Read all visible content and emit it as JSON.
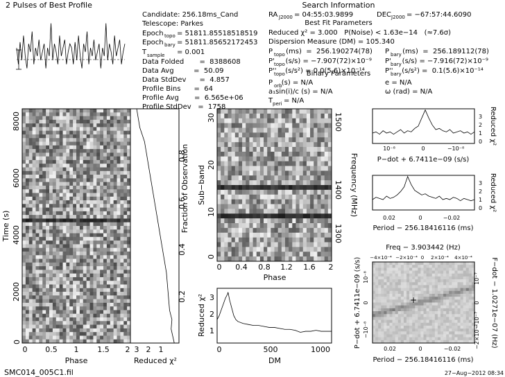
{
  "header": {
    "profile_title": "2 Pulses of Best Profile",
    "search_title": "Search Information",
    "bestfit_title": "Best Fit Parameters",
    "binary_title": "Binary Parameters",
    "candidate": "Candidate:  256.18ms_Cand",
    "telescope": "Telescope:  Parkes",
    "epoch_topo_label": "Epoch",
    "epoch_topo_sub": "topo",
    "epoch_topo_val": "= 51811.85518518519",
    "epoch_bary_label": "Epoch",
    "epoch_bary_sub": "bary",
    "epoch_bary_val": "= 51811.85652172453",
    "tsample_label": "T",
    "tsample_sub": "sample",
    "tsample_val": "=   0.001",
    "data_folded": "Data Folded       =  8388608",
    "data_avg": "Data Avg         =  50.09",
    "data_stddev": "Data StdDev      =  4.857",
    "profile_bins": "Profile Bins      =  64",
    "profile_avg": "Profile Avg       =  6.565e+06",
    "profile_stddev": "Profile StdDev   =  1758",
    "ra": "RA",
    "ra_sub": "J2000",
    "ra_val": "= 04:55:03.9899",
    "dec": "DEC",
    "dec_sub": "J2000",
    "dec_val": "= −67:57:44.6090",
    "reduced_chi": "Reduced χ² = 3.000   P(Noise) < 1.63e−14   (≈7.6σ)",
    "dm": "Dispersion Measure (DM) = 105.340",
    "p_topo": "P      (ms)  =  256.190274(78)",
    "p_topo_sub": "topo",
    "pd_topo": "P'     (s/s) = −7.907(72)×10⁻⁹",
    "pd_topo_sub": "topo",
    "pdd_topo": "P''    (s/s²) = 0.0(5.6)×10⁻¹⁴",
    "pdd_topo_sub": "topo",
    "p_bary": "P      (ms)  =  256.189112(78)",
    "p_bary_sub": "bary",
    "pd_bary": "P'     (s/s) = −7.916(72)×10⁻⁹",
    "pd_bary_sub": "bary",
    "pdd_bary": "P''    (s/s²) =  0.1(5.6)×10⁻¹⁴",
    "pdd_bary_sub": "bary",
    "porb": "P    (s) = N/A",
    "porb_sub": "orb",
    "asini": "a₁sin(i)/c (s) = N/A",
    "tperi": "T     = N/A",
    "tperi_sub": "peri",
    "ecc": "e = N/A",
    "omega": "ω (rad) = N/A"
  },
  "footer": {
    "filename": "SMC014_005C1.fil",
    "date": "27−Aug−2012 08:34"
  },
  "axes": {
    "time_ylabel": "Time (s)",
    "time_xlabel": "Phase",
    "chi_xlabel": "Reduced χ²",
    "frac_label": "Fraction of Observation",
    "subband_ylabel": "Sub−band",
    "freq_label": "Frequency (MHz)",
    "subband_xlabel": "Phase",
    "dm_ylabel": "Reduced χ²",
    "dm_xlabel": "DM",
    "pdot_xlabel": "P−dot + 6.7411e−09 (s/s)",
    "pdot_ylabel": "Reduced χ²",
    "period_xlabel": "Period − 256.18416116 (ms)",
    "period_ylabel": "Reduced χ²",
    "ppdot_top": "Freq − 3.903442 (Hz)",
    "ppdot_xlabel": "Period − 256.18416116 (ms)",
    "ppdot_ylabel": "P−dot + 6.7411e−09 (s/s)",
    "ppdot_right": "F−dot − 1.0271e−07 (Hz)"
  },
  "ticks": {
    "time_y": [
      "0",
      "2000",
      "4000",
      "6000",
      "8000"
    ],
    "time_x": [
      "0",
      "0.5",
      "1",
      "1.5",
      "2"
    ],
    "chi_x": [
      "3",
      "2",
      "1"
    ],
    "frac": [
      "0.2",
      "0.4",
      "0.6",
      "0.8"
    ],
    "subband_y": [
      "0",
      "10",
      "20",
      "30"
    ],
    "subband_x": [
      "0",
      "0.4",
      "0.8",
      "1.2",
      "1.6",
      "2"
    ],
    "freq": [
      "1300",
      "1400",
      "1500"
    ],
    "dm_x": [
      "0",
      "500",
      "1000"
    ],
    "dm_y": [
      "1",
      "2",
      "3"
    ],
    "pdot_x": [
      "10⁻⁸",
      "0",
      "−10⁻⁸"
    ],
    "side_y": [
      "0",
      "1",
      "2",
      "3"
    ],
    "period_x": [
      "0.02",
      "0",
      "−0.02"
    ],
    "ppdot_top": [
      "−4×10⁻⁴",
      "−2×10⁻⁴",
      "0",
      "2×10⁻⁴",
      "4×10⁻⁴"
    ],
    "ppdot_left": [
      "10⁻⁸",
      "0",
      "−10⁻⁸"
    ],
    "ppdot_right": [
      "10⁻⁷",
      "0",
      "−10⁻⁷",
      "−2×10⁻⁷"
    ],
    "ppdot_x": [
      "0.02",
      "0",
      "−0.02"
    ]
  },
  "chart_data": [
    {
      "type": "line",
      "title": "2 Pulses of Best Profile",
      "xlabel": "",
      "ylabel": "",
      "series": [
        {
          "values": [
            0.55,
            0.35,
            0.62,
            0.4,
            0.7,
            0.45,
            0.3,
            0.6,
            0.5,
            0.75,
            0.35,
            0.55,
            0.45,
            0.65,
            0.4,
            0.5,
            0.6,
            0.3,
            0.55,
            0.45,
            0.85,
            0.4,
            0.6,
            0.5,
            0.35,
            0.7,
            0.45,
            0.55,
            0.65,
            0.35,
            0.5,
            0.6,
            0.55,
            0.35,
            0.62,
            0.4,
            0.7,
            0.45,
            0.3,
            0.6,
            0.5,
            0.75,
            0.35,
            0.55,
            0.45,
            0.65,
            0.4,
            0.5,
            0.6,
            0.3,
            0.55,
            0.45,
            0.85,
            0.4,
            0.6,
            0.5,
            0.35,
            0.7,
            0.45,
            0.55,
            0.65,
            0.35,
            0.5,
            0.6
          ]
        }
      ]
    },
    {
      "type": "line",
      "title": "",
      "xlabel": "Reduced χ²",
      "ylabel": "Fraction of Observation",
      "xlim": [
        3.4,
        0.3
      ],
      "ylim": [
        0,
        1
      ],
      "x": [
        0.6,
        0.7,
        0.8,
        0.75,
        0.9,
        0.95,
        1.0,
        1.05,
        1.1,
        1.2,
        1.3,
        1.4,
        1.5,
        1.6,
        1.7,
        1.8,
        1.9,
        2.0,
        2.1,
        2.2,
        2.3,
        2.4,
        2.5,
        2.6,
        2.7,
        2.8,
        2.85,
        2.9,
        2.95,
        3.0
      ],
      "y": [
        0.0,
        0.03,
        0.06,
        0.1,
        0.14,
        0.18,
        0.22,
        0.26,
        0.3,
        0.34,
        0.38,
        0.42,
        0.46,
        0.5,
        0.54,
        0.58,
        0.62,
        0.66,
        0.7,
        0.74,
        0.78,
        0.82,
        0.86,
        0.88,
        0.9,
        0.92,
        0.94,
        0.96,
        0.98,
        1.0
      ]
    },
    {
      "type": "line",
      "title": "",
      "xlabel": "DM",
      "ylabel": "Reduced χ²",
      "xlim": [
        0,
        1100
      ],
      "ylim": [
        0.4,
        3.2
      ],
      "x": [
        0,
        20,
        40,
        60,
        80,
        100,
        105,
        120,
        140,
        160,
        180,
        200,
        250,
        300,
        350,
        400,
        450,
        500,
        550,
        600,
        650,
        700,
        750,
        800,
        850,
        900,
        950,
        1000,
        1050,
        1100
      ],
      "y": [
        1.6,
        1.8,
        2.1,
        2.4,
        2.7,
        2.9,
        3.0,
        2.6,
        2.2,
        1.8,
        1.6,
        1.5,
        1.4,
        1.35,
        1.3,
        1.3,
        1.25,
        1.2,
        1.2,
        1.15,
        1.1,
        1.1,
        1.05,
        0.95,
        1.0,
        1.0,
        1.05,
        1.0,
        1.0,
        1.0
      ]
    },
    {
      "type": "line",
      "title": "",
      "xlabel": "P−dot + 6.7411e−09 (s/s)",
      "ylabel": "Reduced χ²",
      "ylim": [
        0,
        3
      ],
      "y": [
        0.9,
        1.0,
        0.8,
        1.1,
        0.9,
        1.0,
        0.8,
        1.0,
        1.2,
        0.9,
        1.1,
        1.0,
        1.3,
        1.5,
        2.2,
        2.9,
        2.2,
        1.6,
        1.2,
        1.3,
        1.1,
        1.0,
        1.2,
        0.9,
        1.0,
        1.1,
        0.9,
        1.0,
        0.8,
        1.0
      ]
    },
    {
      "type": "line",
      "title": "",
      "xlabel": "Period − 256.18416116 (ms)",
      "ylabel": "Reduced χ²",
      "ylim": [
        0,
        3
      ],
      "y": [
        0.9,
        1.1,
        1.0,
        0.9,
        1.2,
        1.0,
        1.1,
        1.3,
        1.6,
        2.0,
        2.9,
        2.2,
        1.7,
        1.5,
        1.3,
        1.4,
        1.2,
        1.1,
        1.0,
        1.2,
        0.9,
        1.0,
        0.9,
        1.1,
        1.0,
        0.8,
        1.0,
        0.9,
        0.8,
        0.9
      ]
    }
  ],
  "colors": {
    "ink": "#000000",
    "paper": "#ffffff",
    "gray_mid": "#8a8a8a"
  }
}
